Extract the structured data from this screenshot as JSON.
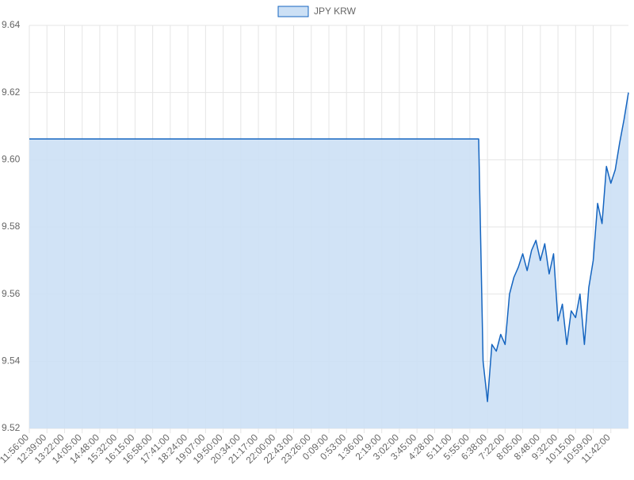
{
  "chart_data": {
    "type": "line",
    "categories": [
      "11:56:00",
      null,
      null,
      null,
      "12:39:00",
      null,
      null,
      null,
      "13:22:00",
      null,
      null,
      null,
      "14:05:00",
      null,
      null,
      null,
      "14:48:00",
      null,
      null,
      null,
      "15:32:00",
      null,
      null,
      null,
      "16:15:00",
      null,
      null,
      null,
      "16:58:00",
      null,
      null,
      null,
      "17:41:00",
      null,
      null,
      null,
      "18:24:00",
      null,
      null,
      null,
      "19:07:00",
      null,
      null,
      null,
      "19:50:00",
      null,
      null,
      null,
      "20:34:00",
      null,
      null,
      null,
      "21:17:00",
      null,
      null,
      null,
      "22:00:00",
      null,
      null,
      null,
      "22:43:00",
      null,
      null,
      null,
      "23:26:00",
      null,
      null,
      null,
      "0:09:00",
      null,
      null,
      null,
      "0:53:00",
      null,
      null,
      null,
      "1:36:00",
      null,
      null,
      null,
      "2:19:00",
      null,
      null,
      null,
      "3:02:00",
      null,
      null,
      null,
      "3:45:00",
      null,
      null,
      null,
      "4:28:00",
      null,
      null,
      null,
      "5:11:00",
      null,
      null,
      null,
      "5:55:00",
      null,
      null,
      null,
      "6:38:00",
      null,
      null,
      null,
      "7:22:00",
      null,
      null,
      null,
      "8:05:00",
      null,
      null,
      null,
      "8:48:00",
      null,
      null,
      null,
      "9:32:00",
      null,
      null,
      null,
      "10:15:00",
      null,
      null,
      null,
      "10:59:00",
      null,
      null,
      null,
      "11:42:00",
      null,
      null,
      null,
      null
    ],
    "series": [
      {
        "name": "JPY KRW",
        "color": "#1565c0",
        "fill": "#cce0f5",
        "values": [
          9.6062,
          9.6062,
          9.6062,
          9.6062,
          9.6062,
          9.6062,
          9.6062,
          9.6062,
          9.6062,
          9.6062,
          9.6062,
          9.6062,
          9.6062,
          9.6062,
          9.6062,
          9.6062,
          9.6062,
          9.6062,
          9.6062,
          9.6062,
          9.6062,
          9.6062,
          9.6062,
          9.6062,
          9.6062,
          9.6062,
          9.6062,
          9.6062,
          9.6062,
          9.6062,
          9.6062,
          9.6062,
          9.6062,
          9.6062,
          9.6062,
          9.6062,
          9.6062,
          9.6062,
          9.6062,
          9.6062,
          9.6062,
          9.6062,
          9.6062,
          9.6062,
          9.6062,
          9.6062,
          9.6062,
          9.6062,
          9.6062,
          9.6062,
          9.6062,
          9.6062,
          9.6062,
          9.6062,
          9.6062,
          9.6062,
          9.6062,
          9.6062,
          9.6062,
          9.6062,
          9.6062,
          9.6062,
          9.6062,
          9.6062,
          9.6062,
          9.6062,
          9.6062,
          9.6062,
          9.6062,
          9.6062,
          9.6062,
          9.6062,
          9.6062,
          9.6062,
          9.6062,
          9.6062,
          9.6062,
          9.6062,
          9.6062,
          9.6062,
          9.6062,
          9.6062,
          9.6062,
          9.6062,
          9.6062,
          9.6062,
          9.6062,
          9.6062,
          9.6062,
          9.6062,
          9.6062,
          9.6062,
          9.6062,
          9.6062,
          9.6062,
          9.6062,
          9.6062,
          9.6062,
          9.6062,
          9.6062,
          9.6062,
          9.6062,
          9.6062,
          9.54,
          9.528,
          9.545,
          9.543,
          9.548,
          9.545,
          9.56,
          9.565,
          9.568,
          9.572,
          9.567,
          9.573,
          9.576,
          9.57,
          9.575,
          9.566,
          9.572,
          9.552,
          9.557,
          9.545,
          9.555,
          9.553,
          9.56,
          9.545,
          9.562,
          9.57,
          9.587,
          9.581,
          9.598,
          9.593,
          9.597,
          9.605,
          9.612,
          9.62
        ]
      }
    ],
    "ylim": [
      9.52,
      9.64
    ],
    "yticks": [
      9.52,
      9.54,
      9.56,
      9.58,
      {
        "value": 9.6,
        "label": "9.60"
      },
      9.62,
      9.64
    ],
    "grid": true
  }
}
